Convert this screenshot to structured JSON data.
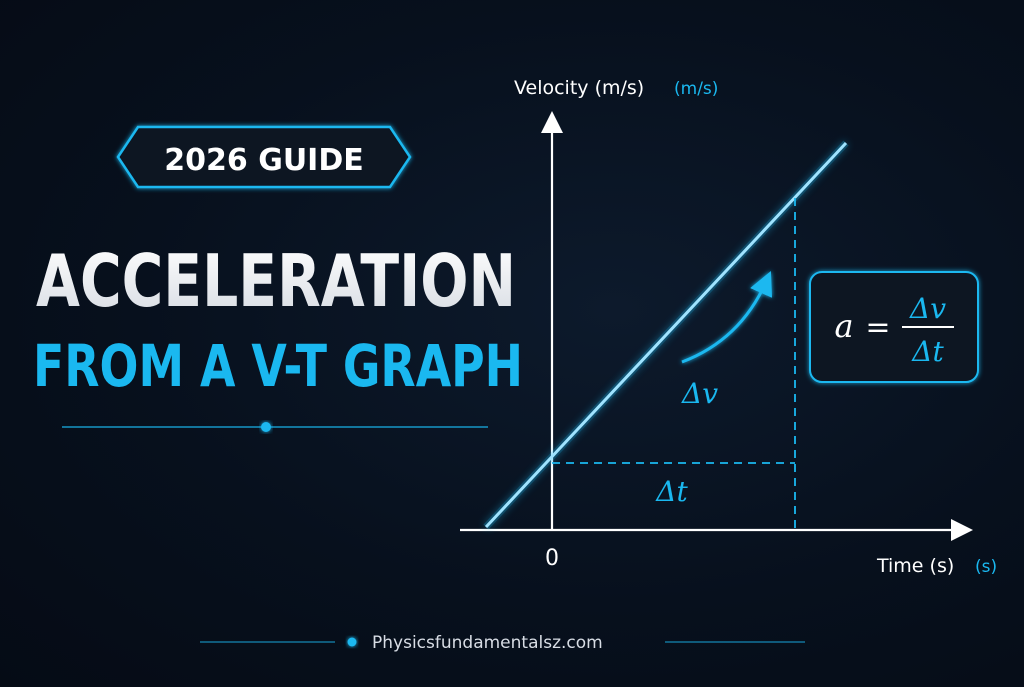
{
  "badge": {
    "text": "2026 GUIDE"
  },
  "title": {
    "line1": "ACCELERATION",
    "line2": "FROM A V-T GRAPH"
  },
  "graph": {
    "y_axis_label": "Velocity (m/s)",
    "y_axis_unit_highlight": "(m/s)",
    "x_axis_label": "Time (s)",
    "x_axis_unit_highlight": "(s)",
    "origin_label": "0",
    "delta_v_label": "Δv",
    "delta_t_label": "Δt"
  },
  "formula": {
    "lhs": "a",
    "equals": "=",
    "numerator": "Δv",
    "denominator": "Δt"
  },
  "footer": {
    "website": "Physicsfundamentalsz.com"
  },
  "colors": {
    "background": "#07101d",
    "accent": "#1ab8f0",
    "text": "#ffffff"
  }
}
